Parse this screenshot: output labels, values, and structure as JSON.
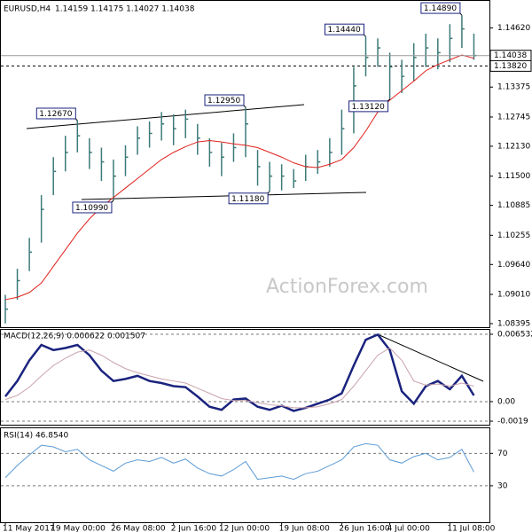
{
  "chart_data": [
    {
      "type": "ohlc",
      "title": "EURUSD,H4",
      "subtitle": "1.14159 1.14175 1.14027 1.14038",
      "watermark": "ActionForex.com",
      "color": "#3d7a7a",
      "high": [
        1.09,
        1.0955,
        1.102,
        1.111,
        1.119,
        1.1235,
        1.1267,
        1.123,
        1.121,
        1.1185,
        1.1215,
        1.1255,
        1.1265,
        1.1285,
        1.128,
        1.129,
        1.126,
        1.123,
        1.122,
        1.124,
        1.1295,
        1.1205,
        1.118,
        1.1175,
        1.1165,
        1.1195,
        1.1205,
        1.123,
        1.129,
        1.138,
        1.1444,
        1.144,
        1.141,
        1.1395,
        1.143,
        1.145,
        1.144,
        1.147,
        1.1489,
        1.145
      ],
      "low": [
        1.084,
        1.089,
        1.095,
        1.101,
        1.111,
        1.116,
        1.12,
        1.1165,
        1.114,
        1.1099,
        1.115,
        1.1195,
        1.121,
        1.1225,
        1.1215,
        1.123,
        1.1195,
        1.117,
        1.115,
        1.118,
        1.119,
        1.113,
        1.1118,
        1.112,
        1.1125,
        1.114,
        1.1155,
        1.117,
        1.1195,
        1.124,
        1.136,
        1.138,
        1.1312,
        1.1325,
        1.135,
        1.138,
        1.1375,
        1.139,
        1.142,
        1.1395
      ],
      "close": [
        1.087,
        1.093,
        1.099,
        1.108,
        1.116,
        1.12,
        1.1235,
        1.12,
        1.118,
        1.115,
        1.119,
        1.123,
        1.124,
        1.126,
        1.125,
        1.127,
        1.123,
        1.12,
        1.119,
        1.121,
        1.126,
        1.117,
        1.115,
        1.115,
        1.114,
        1.117,
        1.118,
        1.12,
        1.125,
        1.134,
        1.14,
        1.142,
        1.138,
        1.136,
        1.14,
        1.142,
        1.141,
        1.144,
        1.146,
        1.1404
      ],
      "series": [
        {
          "color": "#e0201b",
          "values": [
            1.089,
            1.0895,
            1.0905,
            1.0925,
            1.096,
            1.0995,
            1.103,
            1.106,
            1.1085,
            1.1105,
            1.1125,
            1.1145,
            1.1165,
            1.1185,
            1.12,
            1.1212,
            1.1222,
            1.1225,
            1.1222,
            1.1218,
            1.1215,
            1.121,
            1.12,
            1.119,
            1.1178,
            1.117,
            1.1168,
            1.1175,
            1.1185,
            1.121,
            1.1245,
            1.1285,
            1.131,
            1.133,
            1.135,
            1.1372,
            1.1385,
            1.1395,
            1.1405,
            1.1398
          ]
        }
      ],
      "annotations": [
        {
          "value": 1.1267,
          "label": "1.12670"
        },
        {
          "value": 1.1295,
          "label": "1.12950"
        },
        {
          "value": 1.1099,
          "label": "1.10990"
        },
        {
          "value": 1.1118,
          "label": "1.11180"
        },
        {
          "value": 1.1444,
          "label": "1.14440"
        },
        {
          "value": 1.1312,
          "label": "1.13120"
        },
        {
          "value": 1.1489,
          "label": "1.14890"
        }
      ],
      "price_marker": {
        "value": 1.14038,
        "label": "1.14038"
      },
      "level": {
        "value": 1.1382,
        "label": "1.13820"
      },
      "ylim": [
        1.0832,
        1.1519
      ],
      "yticks": [
        {
          "value": 1.1462,
          "label": "1.14620"
        },
        {
          "value": 1.13375,
          "label": "1.13375"
        },
        {
          "value": 1.12745,
          "label": "1.12745"
        },
        {
          "value": 1.1213,
          "label": "1.12130"
        },
        {
          "value": 1.115,
          "label": "1.11500"
        },
        {
          "value": 1.10885,
          "label": "1.10885"
        },
        {
          "value": 1.10255,
          "label": "1.10255"
        },
        {
          "value": 1.0964,
          "label": "1.09640"
        },
        {
          "value": 1.0901,
          "label": "1.09010"
        },
        {
          "value": 1.08395,
          "label": "1.08395"
        }
      ]
    },
    {
      "type": "line",
      "title": "MACD(12,26,9) 0.000622 0.001507",
      "series": [
        {
          "color": "#1a237e",
          "values": [
            0.0005,
            0.002,
            0.004,
            0.0055,
            0.005,
            0.0052,
            0.0055,
            0.0045,
            0.003,
            0.002,
            0.0022,
            0.0025,
            0.002,
            0.0018,
            0.0015,
            0.0014,
            0.0005,
            -0.0005,
            -0.0008,
            0.0002,
            0.0003,
            -0.0005,
            -0.0008,
            -0.0004,
            -0.0009,
            -0.0006,
            -0.0002,
            0.0002,
            0.0008,
            0.0035,
            0.006,
            0.0065,
            0.005,
            0.001,
            -0.0002,
            0.0015,
            0.002,
            0.0012,
            0.0025,
            0.0006
          ]
        },
        {
          "color": "#c9a3ab",
          "values": [
            0.0002,
            0.0006,
            0.0014,
            0.0025,
            0.0035,
            0.0042,
            0.0048,
            0.005,
            0.0045,
            0.0038,
            0.0032,
            0.0028,
            0.0025,
            0.0022,
            0.002,
            0.0018,
            0.0013,
            0.0008,
            0.0003,
            0.0001,
            0.0001,
            -0.0001,
            -0.0003,
            -0.0004,
            -0.0006,
            -0.0006,
            -0.0005,
            -0.0002,
            0.0002,
            0.0015,
            0.003,
            0.0045,
            0.0052,
            0.004,
            0.002,
            0.0016,
            0.0017,
            0.0015,
            0.0018,
            0.0015
          ]
        }
      ],
      "ylim": [
        -0.00224,
        0.00696
      ],
      "yticks": [
        0.006532,
        {
          "value": 0,
          "label": "0.00"
        },
        -0.0019
      ]
    },
    {
      "type": "line",
      "title": "RSI(14) 46.8540",
      "categories": [
        "11 May 2017",
        null,
        null,
        null,
        "19 May 00:00",
        null,
        null,
        null,
        null,
        "26 May 08:00",
        null,
        null,
        null,
        null,
        "2 Jun 16:00",
        null,
        null,
        null,
        "12 Jun 00:00",
        null,
        null,
        null,
        null,
        "19 Jun 08:00",
        null,
        null,
        null,
        null,
        "26 Jun 16:00",
        null,
        null,
        null,
        "4 Jul 00:00",
        null,
        null,
        null,
        null,
        "11 Jul 08:00",
        null,
        null
      ],
      "series": [
        {
          "color": "#5b9bd5",
          "values": [
            40,
            55,
            68,
            80,
            78,
            72,
            75,
            62,
            55,
            48,
            58,
            62,
            60,
            65,
            58,
            63,
            52,
            45,
            42,
            50,
            60,
            38,
            40,
            42,
            38,
            45,
            48,
            55,
            62,
            78,
            82,
            80,
            62,
            58,
            66,
            70,
            62,
            65,
            75,
            47
          ]
        }
      ],
      "ylim": [
        -15,
        101
      ],
      "yticks": [
        70,
        30
      ]
    }
  ]
}
